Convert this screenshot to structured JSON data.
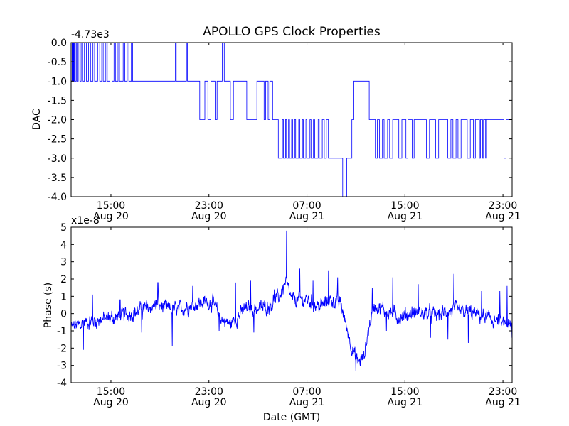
{
  "figure": {
    "title": "APOLLO GPS Clock Properties",
    "background": "#ffffff",
    "line_color": "#0000ff"
  },
  "chart_data": [
    {
      "type": "line",
      "ylabel": "DAC",
      "xlabel": "",
      "offset_text": "-4.73e3",
      "ylim": [
        -4.0,
        0.0
      ],
      "yticks": [
        "0.0",
        "-0.5",
        "-1.0",
        "-1.5",
        "-2.0",
        "-2.5",
        "-3.0",
        "-3.5",
        "-4.0"
      ],
      "x_range": [
        "2013-08-20 11:45",
        "2013-08-21 23:45"
      ],
      "x_ticks": [
        {
          "time": "2013-08-20 15:00",
          "line1": "15:00",
          "line2": "Aug 20"
        },
        {
          "time": "2013-08-20 23:00",
          "line1": "23:00",
          "line2": "Aug 20"
        },
        {
          "time": "2013-08-21 07:00",
          "line1": "07:00",
          "line2": "Aug 21"
        },
        {
          "time": "2013-08-21 15:00",
          "line1": "15:00",
          "line2": "Aug 21"
        },
        {
          "time": "2013-08-21 23:00",
          "line1": "23:00",
          "line2": "Aug 21"
        }
      ],
      "series": [
        {
          "step": true,
          "points": [
            [
              "2013-08-20 11:45",
              -1
            ],
            [
              "2013-08-20 11:50",
              0
            ],
            [
              "2013-08-20 11:52",
              -1
            ],
            [
              "2013-08-20 11:55",
              0
            ],
            [
              "2013-08-20 11:58",
              -1
            ],
            [
              "2013-08-20 12:01",
              0
            ],
            [
              "2013-08-20 12:05",
              -1
            ],
            [
              "2013-08-20 12:10",
              0
            ],
            [
              "2013-08-20 12:14",
              -1
            ],
            [
              "2013-08-20 12:20",
              0
            ],
            [
              "2013-08-20 12:28",
              -1
            ],
            [
              "2013-08-20 12:34",
              0
            ],
            [
              "2013-08-20 12:40",
              -1
            ],
            [
              "2013-08-20 12:50",
              0
            ],
            [
              "2013-08-20 13:00",
              -1
            ],
            [
              "2013-08-20 13:10",
              0
            ],
            [
              "2013-08-20 13:20",
              -1
            ],
            [
              "2013-08-20 13:32",
              0
            ],
            [
              "2013-08-20 13:40",
              -1
            ],
            [
              "2013-08-20 13:55",
              0
            ],
            [
              "2013-08-20 14:05",
              -1
            ],
            [
              "2013-08-20 14:15",
              0
            ],
            [
              "2013-08-20 14:22",
              -1
            ],
            [
              "2013-08-20 14:35",
              0
            ],
            [
              "2013-08-20 14:42",
              -1
            ],
            [
              "2013-08-20 14:55",
              0
            ],
            [
              "2013-08-20 15:05",
              -1
            ],
            [
              "2013-08-20 15:15",
              0
            ],
            [
              "2013-08-20 15:22",
              -1
            ],
            [
              "2013-08-20 15:35",
              0
            ],
            [
              "2013-08-20 15:42",
              -1
            ],
            [
              "2013-08-20 16:00",
              0
            ],
            [
              "2013-08-20 16:08",
              -1
            ],
            [
              "2013-08-20 16:20",
              0
            ],
            [
              "2013-08-20 16:28",
              -1
            ],
            [
              "2013-08-20 16:40",
              0
            ],
            [
              "2013-08-20 16:46",
              -1
            ],
            [
              "2013-08-20 20:15",
              0
            ],
            [
              "2013-08-20 20:20",
              -1
            ],
            [
              "2013-08-20 21:10",
              0
            ],
            [
              "2013-08-20 21:15",
              -1
            ],
            [
              "2013-08-20 22:15",
              -2
            ],
            [
              "2013-08-20 22:40",
              -1
            ],
            [
              "2013-08-20 22:55",
              -2
            ],
            [
              "2013-08-20 23:10",
              -1
            ],
            [
              "2013-08-20 23:30",
              -2
            ],
            [
              "2013-08-20 23:40",
              -1
            ],
            [
              "2013-08-21 00:05",
              0
            ],
            [
              "2013-08-21 00:15",
              -1
            ],
            [
              "2013-08-21 00:45",
              -2
            ],
            [
              "2013-08-21 01:00",
              -1
            ],
            [
              "2013-08-21 02:05",
              -2
            ],
            [
              "2013-08-21 02:55",
              -1
            ],
            [
              "2013-08-21 03:30",
              -2
            ],
            [
              "2013-08-21 03:38",
              -1
            ],
            [
              "2013-08-21 03:50",
              -2
            ],
            [
              "2013-08-21 03:58",
              -1
            ],
            [
              "2013-08-21 04:12",
              -2
            ],
            [
              "2013-08-21 04:40",
              -3
            ],
            [
              "2013-08-21 05:00",
              -2
            ],
            [
              "2013-08-21 05:05",
              -3
            ],
            [
              "2013-08-21 05:15",
              -2
            ],
            [
              "2013-08-21 05:20",
              -3
            ],
            [
              "2013-08-21 05:30",
              -2
            ],
            [
              "2013-08-21 05:35",
              -3
            ],
            [
              "2013-08-21 05:45",
              -2
            ],
            [
              "2013-08-21 05:50",
              -3
            ],
            [
              "2013-08-21 06:00",
              -2
            ],
            [
              "2013-08-21 06:05",
              -3
            ],
            [
              "2013-08-21 06:20",
              -2
            ],
            [
              "2013-08-21 06:25",
              -3
            ],
            [
              "2013-08-21 06:38",
              -2
            ],
            [
              "2013-08-21 06:42",
              -3
            ],
            [
              "2013-08-21 06:55",
              -2
            ],
            [
              "2013-08-21 07:00",
              -3
            ],
            [
              "2013-08-21 07:15",
              -2
            ],
            [
              "2013-08-21 07:20",
              -3
            ],
            [
              "2013-08-21 07:32",
              -2
            ],
            [
              "2013-08-21 07:38",
              -3
            ],
            [
              "2013-08-21 07:55",
              -2
            ],
            [
              "2013-08-21 08:00",
              -3
            ],
            [
              "2013-08-21 08:15",
              -2
            ],
            [
              "2013-08-21 08:25",
              -3
            ],
            [
              "2013-08-21 08:35",
              -2
            ],
            [
              "2013-08-21 08:45",
              -3
            ],
            [
              "2013-08-21 09:55",
              -4
            ],
            [
              "2013-08-21 10:15",
              -3
            ],
            [
              "2013-08-21 10:40",
              -2
            ],
            [
              "2013-08-21 10:50",
              -1
            ],
            [
              "2013-08-21 12:05",
              -2
            ],
            [
              "2013-08-21 12:35",
              -3
            ],
            [
              "2013-08-21 12:45",
              -2
            ],
            [
              "2013-08-21 12:55",
              -3
            ],
            [
              "2013-08-21 13:10",
              -2
            ],
            [
              "2013-08-21 13:18",
              -3
            ],
            [
              "2013-08-21 13:35",
              -2
            ],
            [
              "2013-08-21 13:45",
              -3
            ],
            [
              "2013-08-21 14:00",
              -2
            ],
            [
              "2013-08-21 14:30",
              -3
            ],
            [
              "2013-08-21 14:45",
              -2
            ],
            [
              "2013-08-21 15:05",
              -3
            ],
            [
              "2013-08-21 15:15",
              -2
            ],
            [
              "2013-08-21 15:35",
              -3
            ],
            [
              "2013-08-21 15:45",
              -2
            ],
            [
              "2013-08-21 16:45",
              -3
            ],
            [
              "2013-08-21 17:00",
              -2
            ],
            [
              "2013-08-21 17:30",
              -3
            ],
            [
              "2013-08-21 17:45",
              -2
            ],
            [
              "2013-08-21 18:30",
              -3
            ],
            [
              "2013-08-21 18:45",
              -2
            ],
            [
              "2013-08-21 18:55",
              -3
            ],
            [
              "2013-08-21 19:10",
              -2
            ],
            [
              "2013-08-21 19:20",
              -3
            ],
            [
              "2013-08-21 19:35",
              -2
            ],
            [
              "2013-08-21 20:05",
              -3
            ],
            [
              "2013-08-21 20:20",
              -2
            ],
            [
              "2013-08-21 20:35",
              -3
            ],
            [
              "2013-08-21 20:45",
              -2
            ],
            [
              "2013-08-21 21:05",
              -3
            ],
            [
              "2013-08-21 21:10",
              -2
            ],
            [
              "2013-08-21 21:20",
              -3
            ],
            [
              "2013-08-21 21:25",
              -2
            ],
            [
              "2013-08-21 21:35",
              -3
            ],
            [
              "2013-08-21 21:40",
              -2
            ],
            [
              "2013-08-21 23:05",
              -3
            ],
            [
              "2013-08-21 23:15",
              -2
            ],
            [
              "2013-08-21 23:45",
              -2
            ]
          ]
        }
      ]
    },
    {
      "type": "line",
      "ylabel": "Phase (s)",
      "xlabel": "Date (GMT)",
      "offset_text": "x1e-8",
      "ylim": [
        -4,
        5
      ],
      "yticks": [
        "5",
        "4",
        "3",
        "2",
        "1",
        "0",
        "-1",
        "-2",
        "-3",
        "-4"
      ],
      "x_range": [
        "2013-08-20 11:45",
        "2013-08-21 23:45"
      ],
      "x_ticks": [
        {
          "time": "2013-08-20 15:00",
          "line1": "15:00",
          "line2": "Aug 20"
        },
        {
          "time": "2013-08-20 23:00",
          "line1": "23:00",
          "line2": "Aug 20"
        },
        {
          "time": "2013-08-21 07:00",
          "line1": "07:00",
          "line2": "Aug 21"
        },
        {
          "time": "2013-08-21 15:00",
          "line1": "15:00",
          "line2": "Aug 21"
        },
        {
          "time": "2013-08-21 23:00",
          "line1": "23:00",
          "line2": "Aug 21"
        }
      ],
      "series": [
        {
          "noise": 0.35,
          "points": [
            [
              "2013-08-20 11:45",
              -0.8
            ],
            [
              "2013-08-20 13:00",
              -0.5
            ],
            [
              "2013-08-20 14:30",
              -0.3
            ],
            [
              "2013-08-20 15:30",
              -0.2
            ],
            [
              "2013-08-20 17:00",
              0.1
            ],
            [
              "2013-08-20 18:45",
              0.5
            ],
            [
              "2013-08-20 19:30",
              0.3
            ],
            [
              "2013-08-20 20:30",
              0.2
            ],
            [
              "2013-08-20 22:00",
              0.6
            ],
            [
              "2013-08-20 23:15",
              0.7
            ],
            [
              "2013-08-21 00:00",
              -0.3
            ],
            [
              "2013-08-21 00:45",
              -0.6
            ],
            [
              "2013-08-21 02:00",
              0.3
            ],
            [
              "2013-08-21 03:15",
              0.3
            ],
            [
              "2013-08-21 04:00",
              0.5
            ],
            [
              "2013-08-21 04:45",
              1.0
            ],
            [
              "2013-08-21 05:15",
              1.8
            ],
            [
              "2013-08-21 05:45",
              0.8
            ],
            [
              "2013-08-21 07:00",
              0.8
            ],
            [
              "2013-08-21 08:00",
              0.4
            ],
            [
              "2013-08-21 09:00",
              0.8
            ],
            [
              "2013-08-21 09:45",
              0.6
            ],
            [
              "2013-08-21 10:15",
              -0.8
            ],
            [
              "2013-08-21 10:45",
              -2.2
            ],
            [
              "2013-08-21 11:10",
              -2.8
            ],
            [
              "2013-08-21 11:40",
              -2.5
            ],
            [
              "2013-08-21 12:00",
              -1.0
            ],
            [
              "2013-08-21 12:30",
              0.5
            ],
            [
              "2013-08-21 13:00",
              0.3
            ],
            [
              "2013-08-21 14:30",
              -0.2
            ],
            [
              "2013-08-21 16:00",
              0.1
            ],
            [
              "2013-08-21 17:30",
              -0.1
            ],
            [
              "2013-08-21 19:00",
              0.2
            ],
            [
              "2013-08-21 20:30",
              0.0
            ],
            [
              "2013-08-21 22:00",
              -0.3
            ],
            [
              "2013-08-21 23:45",
              -0.8
            ]
          ],
          "spikes": [
            [
              "2013-08-20 13:30",
              1.1
            ],
            [
              "2013-08-20 12:45",
              -2.1
            ],
            [
              "2013-08-20 15:45",
              0.8
            ],
            [
              "2013-08-20 17:30",
              -1.1
            ],
            [
              "2013-08-20 18:50",
              1.8
            ],
            [
              "2013-08-20 20:00",
              -1.9
            ],
            [
              "2013-08-20 21:40",
              1.6
            ],
            [
              "2013-08-20 23:50",
              -1.0
            ],
            [
              "2013-08-21 01:10",
              1.8
            ],
            [
              "2013-08-21 02:25",
              1.9
            ],
            [
              "2013-08-21 02:40",
              -1.1
            ],
            [
              "2013-08-21 04:20",
              1.4
            ],
            [
              "2013-08-21 05:20",
              4.8
            ],
            [
              "2013-08-21 06:25",
              2.6
            ],
            [
              "2013-08-21 07:30",
              1.9
            ],
            [
              "2013-08-21 08:45",
              2.5
            ],
            [
              "2013-08-21 09:30",
              2.1
            ],
            [
              "2013-08-21 11:00",
              -3.3
            ],
            [
              "2013-08-21 12:20",
              1.5
            ],
            [
              "2013-08-21 13:30",
              -1.0
            ],
            [
              "2013-08-21 14:00",
              2.1
            ],
            [
              "2013-08-21 16:05",
              1.7
            ],
            [
              "2013-08-21 17:05",
              -1.4
            ],
            [
              "2013-08-21 18:30",
              -1.5
            ],
            [
              "2013-08-21 19:00",
              2.3
            ],
            [
              "2013-08-21 20:10",
              -1.7
            ],
            [
              "2013-08-21 21:15",
              1.3
            ],
            [
              "2013-08-21 22:45",
              1.3
            ],
            [
              "2013-08-21 23:20",
              1.6
            ],
            [
              "2013-08-21 23:40",
              -1.4
            ]
          ]
        }
      ]
    }
  ]
}
